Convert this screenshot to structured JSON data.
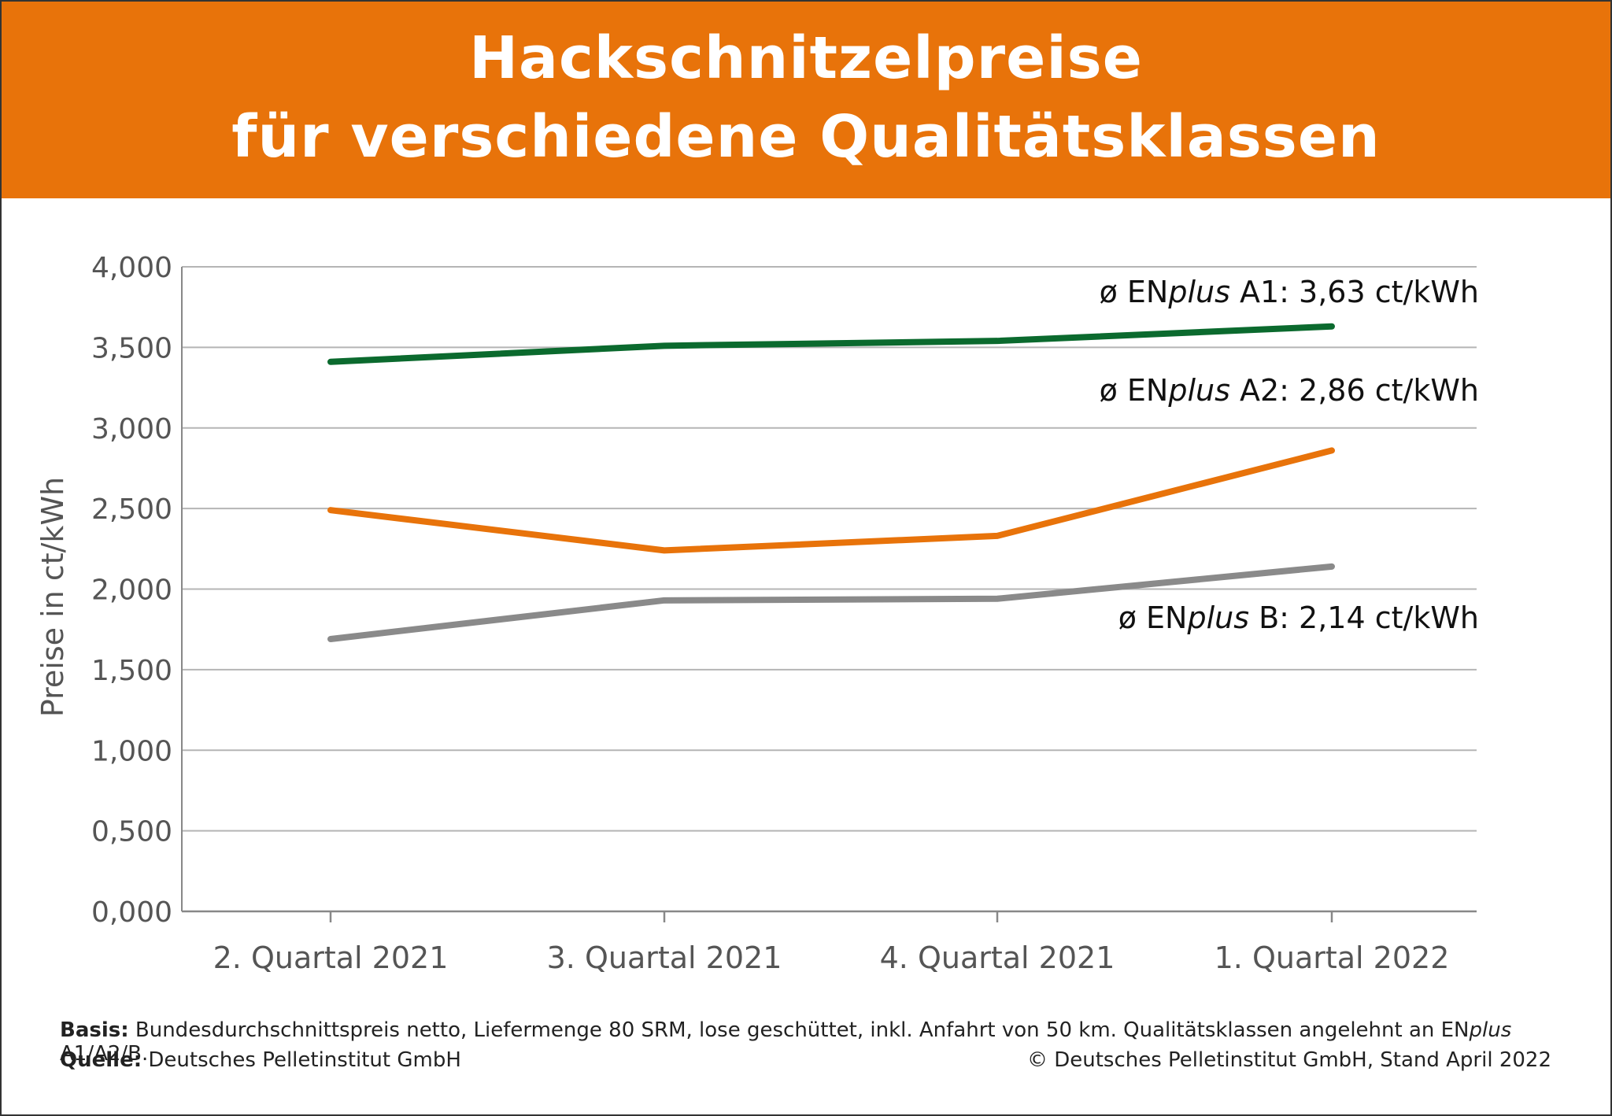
{
  "header": {
    "title_line1": "Hackschnitzelpreise",
    "title_line2": "für verschiedene Qualitätsklassen"
  },
  "colors": {
    "header_bg": "#E8730A",
    "series_a1": "#0B6A2E",
    "series_a2": "#E8730A",
    "series_b": "#8A8A8A",
    "grid": "#B5B5B5"
  },
  "chart_data": {
    "type": "line",
    "ylabel": "Preise in ct/kWh",
    "ylim": [
      0,
      4
    ],
    "yticks": [
      "0,000",
      "0,500",
      "1,000",
      "1,500",
      "2,000",
      "2,500",
      "3,000",
      "3,500",
      "4,000"
    ],
    "categories": [
      "2. Quartal 2021",
      "3. Quartal 2021",
      "4. Quartal 2021",
      "1. Quartal 2022"
    ],
    "grid": true,
    "series": [
      {
        "key": "a1",
        "label": {
          "prefix": "ø EN",
          "italic": "plus",
          "suffix": " A1:",
          "value": "3,63 ct/kWh"
        },
        "values": [
          3.41,
          3.51,
          3.54,
          3.63
        ]
      },
      {
        "key": "a2",
        "label": {
          "prefix": "ø EN",
          "italic": "plus",
          "suffix": " A2:",
          "value": "2,86 ct/kWh"
        },
        "values": [
          2.49,
          2.24,
          2.33,
          2.86
        ]
      },
      {
        "key": "b",
        "label": {
          "prefix": "ø EN",
          "italic": "plus",
          "suffix": " B:",
          "value": "2,14 ct/kWh"
        },
        "values": [
          1.69,
          1.93,
          1.94,
          2.14
        ]
      }
    ]
  },
  "footer": {
    "basis_label": "Basis:",
    "basis_text_1": " Bundesdurchschnittspreis netto, Liefermenge 80 SRM, lose geschüttet, inkl. Anfahrt von 50 km. Qualitätsklassen angelehnt an EN",
    "basis_italic": "plus",
    "basis_text_2": " A1/A2/B.",
    "source_label": "Quelle:",
    "source_text": " Deutsches Pelletinstitut GmbH",
    "copyright": "© Deutsches Pelletinstitut GmbH, Stand April 2022"
  }
}
